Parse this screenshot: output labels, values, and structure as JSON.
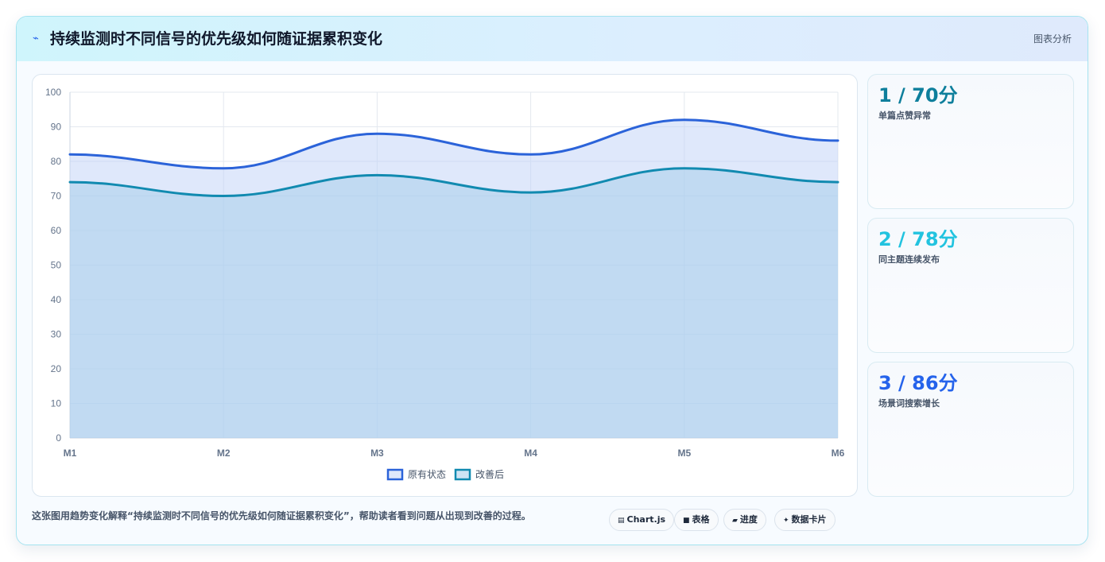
{
  "header": {
    "icon": "bolt-icon",
    "title": "持续监测时不同信号的优先级如何随证据累积变化",
    "tag": "图表分析"
  },
  "chart_data": {
    "type": "area",
    "categories": [
      "M1",
      "M2",
      "M3",
      "M4",
      "M5",
      "M6"
    ],
    "series": [
      {
        "name": "原有状态",
        "values": [
          82,
          78,
          88,
          82,
          92,
          86
        ],
        "color": "#2b63d9"
      },
      {
        "name": "改善后",
        "values": [
          74,
          70,
          76,
          71,
          78,
          74
        ],
        "color": "#118ab0"
      }
    ],
    "ylim": [
      0,
      100
    ],
    "yticks": [
      0,
      10,
      20,
      30,
      40,
      50,
      60,
      70,
      80,
      90,
      100
    ],
    "grid": true,
    "legend_position": "bottom",
    "title": "",
    "xlabel": "",
    "ylabel": ""
  },
  "cards": [
    {
      "value": "1 / 70分",
      "label": "单篇点赞异常",
      "color": "#0e7f9c"
    },
    {
      "value": "2 / 78分",
      "label": "同主题连续发布",
      "color": "#22c3df"
    },
    {
      "value": "3 / 86分",
      "label": "场景词搜索增长",
      "color": "#2563eb"
    }
  ],
  "footer": {
    "caption": "这张图用趋势变化解释“持续监测时不同信号的优先级如何随证据累积变化”，帮助读者看到问题从出现到改善的过程。",
    "chips": [
      {
        "icon": "chart-icon",
        "label": "Chart.js"
      },
      {
        "icon": "table-icon",
        "label": "表格"
      },
      {
        "icon": "progress-icon",
        "label": "进度"
      },
      {
        "icon": "card-icon",
        "label": "数据卡片"
      }
    ]
  }
}
